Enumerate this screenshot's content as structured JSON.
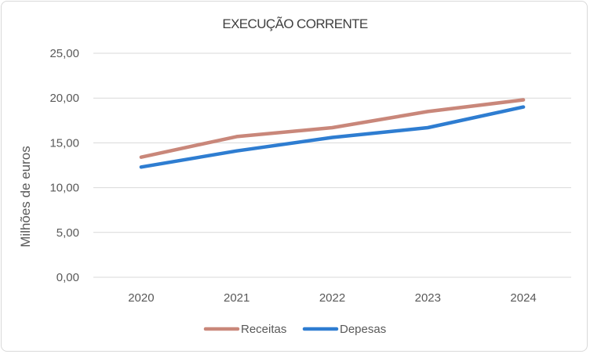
{
  "chart_data": {
    "type": "line",
    "title": "EXECUÇÃO CORRENTE",
    "xlabel": "",
    "ylabel": "Milhões de euros",
    "categories": [
      "2020",
      "2021",
      "2022",
      "2023",
      "2024"
    ],
    "ylim": [
      0,
      25
    ],
    "yticks": [
      "0,00",
      "5,00",
      "10,00",
      "15,00",
      "20,00",
      "25,00"
    ],
    "grid": true,
    "legend_position": "bottom",
    "series": [
      {
        "name": "Receitas",
        "color": "#c9877a",
        "values": [
          13.4,
          15.7,
          16.7,
          18.5,
          19.8
        ]
      },
      {
        "name": "Depesas",
        "color": "#2e7dd1",
        "values": [
          12.3,
          14.1,
          15.6,
          16.7,
          19.0
        ]
      }
    ]
  }
}
